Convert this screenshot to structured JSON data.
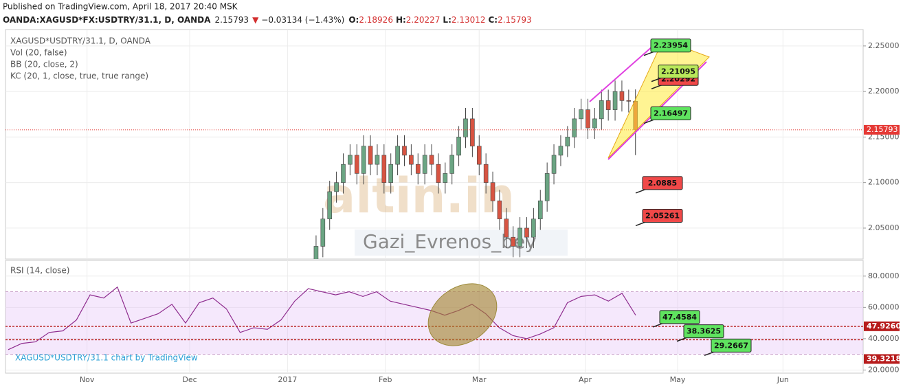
{
  "header": {
    "published": "Published on TradingView.com, April 18, 2017 20:40 MSK",
    "symbol": "OANDA:XAGUSD*FX:USDTRY/31.1, D, OANDA",
    "last": "2.15793",
    "arrow": "▼",
    "change": "−0.03134 (−1.43%)",
    "ohlc": [
      {
        "label": "O:",
        "value": "2.18926"
      },
      {
        "label": "H:",
        "value": "2.20227"
      },
      {
        "label": "L:",
        "value": "2.13012"
      },
      {
        "label": "C:",
        "value": "2.15793"
      }
    ]
  },
  "watermark": {
    "brand": "altin.in",
    "author": "Gazi_Evrenos_bey",
    "credit": "XAGUSD*USDTRY/31.1 chart by TradingView"
  },
  "chart_data": [
    {
      "type": "candlestick",
      "indicators": [
        "XAGUSD*USDTRY/31.1, D, OANDA",
        "Vol (20, false)",
        "BB (20, close, 2)",
        "KC (20, 1, close, true, true range)"
      ],
      "categories": [
        null,
        null,
        null,
        null,
        null,
        null,
        null,
        null,
        null,
        null,
        null,
        null,
        null,
        null,
        null,
        null,
        null,
        null,
        null,
        null,
        null,
        null,
        null,
        null,
        null,
        null,
        null,
        null,
        null,
        null,
        null,
        null,
        null,
        null,
        null,
        null,
        null,
        null,
        null,
        null,
        null,
        null,
        null,
        null,
        null,
        null,
        null,
        null
      ],
      "open": [
        2.01,
        2.03,
        2.06,
        2.09,
        2.1,
        2.12,
        2.13,
        2.11,
        2.14,
        2.12,
        2.13,
        2.1,
        2.12,
        2.14,
        2.13,
        2.12,
        2.11,
        2.13,
        2.12,
        2.1,
        2.11,
        2.13,
        2.15,
        2.17,
        2.14,
        2.12,
        2.1,
        2.08,
        2.06,
        2.04,
        2.03,
        2.05,
        2.04,
        2.06,
        2.08,
        2.11,
        2.13,
        2.14,
        2.15,
        2.17,
        2.18,
        2.16,
        2.17,
        2.19,
        2.18,
        2.2,
        2.19,
        2.18926
      ],
      "high": [
        2.042,
        2.072,
        2.102,
        2.112,
        2.132,
        2.142,
        2.142,
        2.152,
        2.152,
        2.142,
        2.142,
        2.132,
        2.152,
        2.152,
        2.142,
        2.132,
        2.142,
        2.142,
        2.132,
        2.122,
        2.142,
        2.162,
        2.182,
        2.182,
        2.152,
        2.132,
        2.112,
        2.092,
        2.072,
        2.052,
        2.062,
        2.062,
        2.072,
        2.092,
        2.122,
        2.142,
        2.152,
        2.162,
        2.182,
        2.192,
        2.192,
        2.182,
        2.202,
        2.202,
        2.212,
        2.212,
        2.202,
        2.20227
      ],
      "low": [
        1.998,
        2.018,
        2.048,
        2.078,
        2.088,
        2.108,
        2.098,
        2.098,
        2.108,
        2.108,
        2.088,
        2.088,
        2.108,
        2.118,
        2.108,
        2.098,
        2.098,
        2.108,
        2.088,
        2.088,
        2.098,
        2.118,
        2.138,
        2.128,
        2.108,
        2.088,
        2.068,
        2.048,
        2.028,
        2.018,
        2.018,
        2.028,
        2.028,
        2.048,
        2.068,
        2.098,
        2.118,
        2.128,
        2.138,
        2.158,
        2.148,
        2.148,
        2.158,
        2.168,
        2.168,
        2.178,
        2.177,
        2.13012
      ],
      "close": [
        2.03,
        2.06,
        2.09,
        2.1,
        2.12,
        2.13,
        2.11,
        2.14,
        2.12,
        2.13,
        2.1,
        2.12,
        2.14,
        2.13,
        2.12,
        2.11,
        2.13,
        2.12,
        2.1,
        2.11,
        2.13,
        2.15,
        2.17,
        2.14,
        2.12,
        2.1,
        2.08,
        2.06,
        2.04,
        2.03,
        2.05,
        2.04,
        2.06,
        2.08,
        2.11,
        2.13,
        2.14,
        2.15,
        2.17,
        2.18,
        2.16,
        2.17,
        2.19,
        2.18,
        2.2,
        2.19,
        2.18926,
        2.15793
      ],
      "up_color": "#6ba583",
      "down_color": "#d75442",
      "xlim": [
        -45.7,
        80.5
      ],
      "xticks": [
        {
          "value": -33.7,
          "label": "Nov"
        },
        {
          "value": -18.6,
          "label": "Dec"
        },
        {
          "value": -4.2,
          "label": "2017"
        },
        {
          "value": 10.2,
          "label": "Feb"
        },
        {
          "value": 24.0,
          "label": "Mar"
        },
        {
          "value": 39.6,
          "label": "Apr"
        },
        {
          "value": 53.2,
          "label": "May"
        },
        {
          "value": 68.7,
          "label": "Jun"
        }
      ],
      "ylim": [
        2.016,
        2.268
      ],
      "yticks": [
        {
          "value": 2.05,
          "label": "2.05000"
        },
        {
          "value": 2.1,
          "label": "2.10000"
        },
        {
          "value": 2.15,
          "label": "2.15000"
        },
        {
          "value": 2.2,
          "label": "2.20000"
        },
        {
          "value": 2.25,
          "label": "2.25000"
        }
      ],
      "last_price": 2.15793,
      "last_color": "#e53935",
      "callouts": [
        {
          "value": 2.23954,
          "color": "#5fe35f"
        },
        {
          "value": 2.20292,
          "color": "#f04848"
        },
        {
          "value": 2.21095,
          "color": "#b9e85a"
        },
        {
          "value": 2.16497,
          "color": "#5fe35f"
        },
        {
          "value": 2.0885,
          "color": "#f04848"
        },
        {
          "value": 2.05261,
          "color": "#f04848"
        }
      ],
      "grid": true
    },
    {
      "type": "line",
      "title": "RSI (14, close)",
      "categories": [
        null,
        null,
        null,
        null,
        null,
        null,
        null,
        null,
        null,
        null,
        null,
        null,
        null,
        null,
        null,
        null,
        null,
        null,
        null,
        null,
        null,
        null,
        null,
        null,
        null,
        null,
        null,
        null,
        null,
        null,
        null,
        null,
        null,
        null,
        null,
        null,
        null,
        null,
        null,
        null,
        null,
        null,
        null,
        null,
        null,
        null,
        null
      ],
      "values": [
        33,
        37,
        38,
        44,
        45,
        52,
        68,
        66,
        73,
        50,
        53,
        56,
        62,
        50,
        63,
        66,
        59,
        44,
        47,
        46,
        52,
        64,
        72,
        70,
        68,
        70,
        67,
        70,
        64,
        62,
        60,
        58,
        55,
        58,
        62,
        56,
        47,
        42,
        40,
        43,
        47,
        63,
        67,
        68,
        64,
        69,
        55
      ],
      "color": "#8e2c8e",
      "ylim": [
        18,
        90
      ],
      "yticks": [
        {
          "value": 20,
          "label": "20.0000"
        },
        {
          "value": 40,
          "label": "40.0000"
        },
        {
          "value": 60,
          "label": "60.0000"
        },
        {
          "value": 80,
          "label": "80.0000"
        }
      ],
      "band": [
        30,
        70
      ],
      "hlines": [
        {
          "value": 47.926,
          "label": "47.9260"
        },
        {
          "value": 39.3218,
          "label": "39.3218"
        }
      ],
      "callouts": [
        {
          "value": 47.4584,
          "color": "#5fe35f"
        },
        {
          "value": 38.3625,
          "color": "#5fe35f"
        },
        {
          "value": 29.2667,
          "color": "#5fe35f"
        }
      ],
      "grid": true
    }
  ]
}
